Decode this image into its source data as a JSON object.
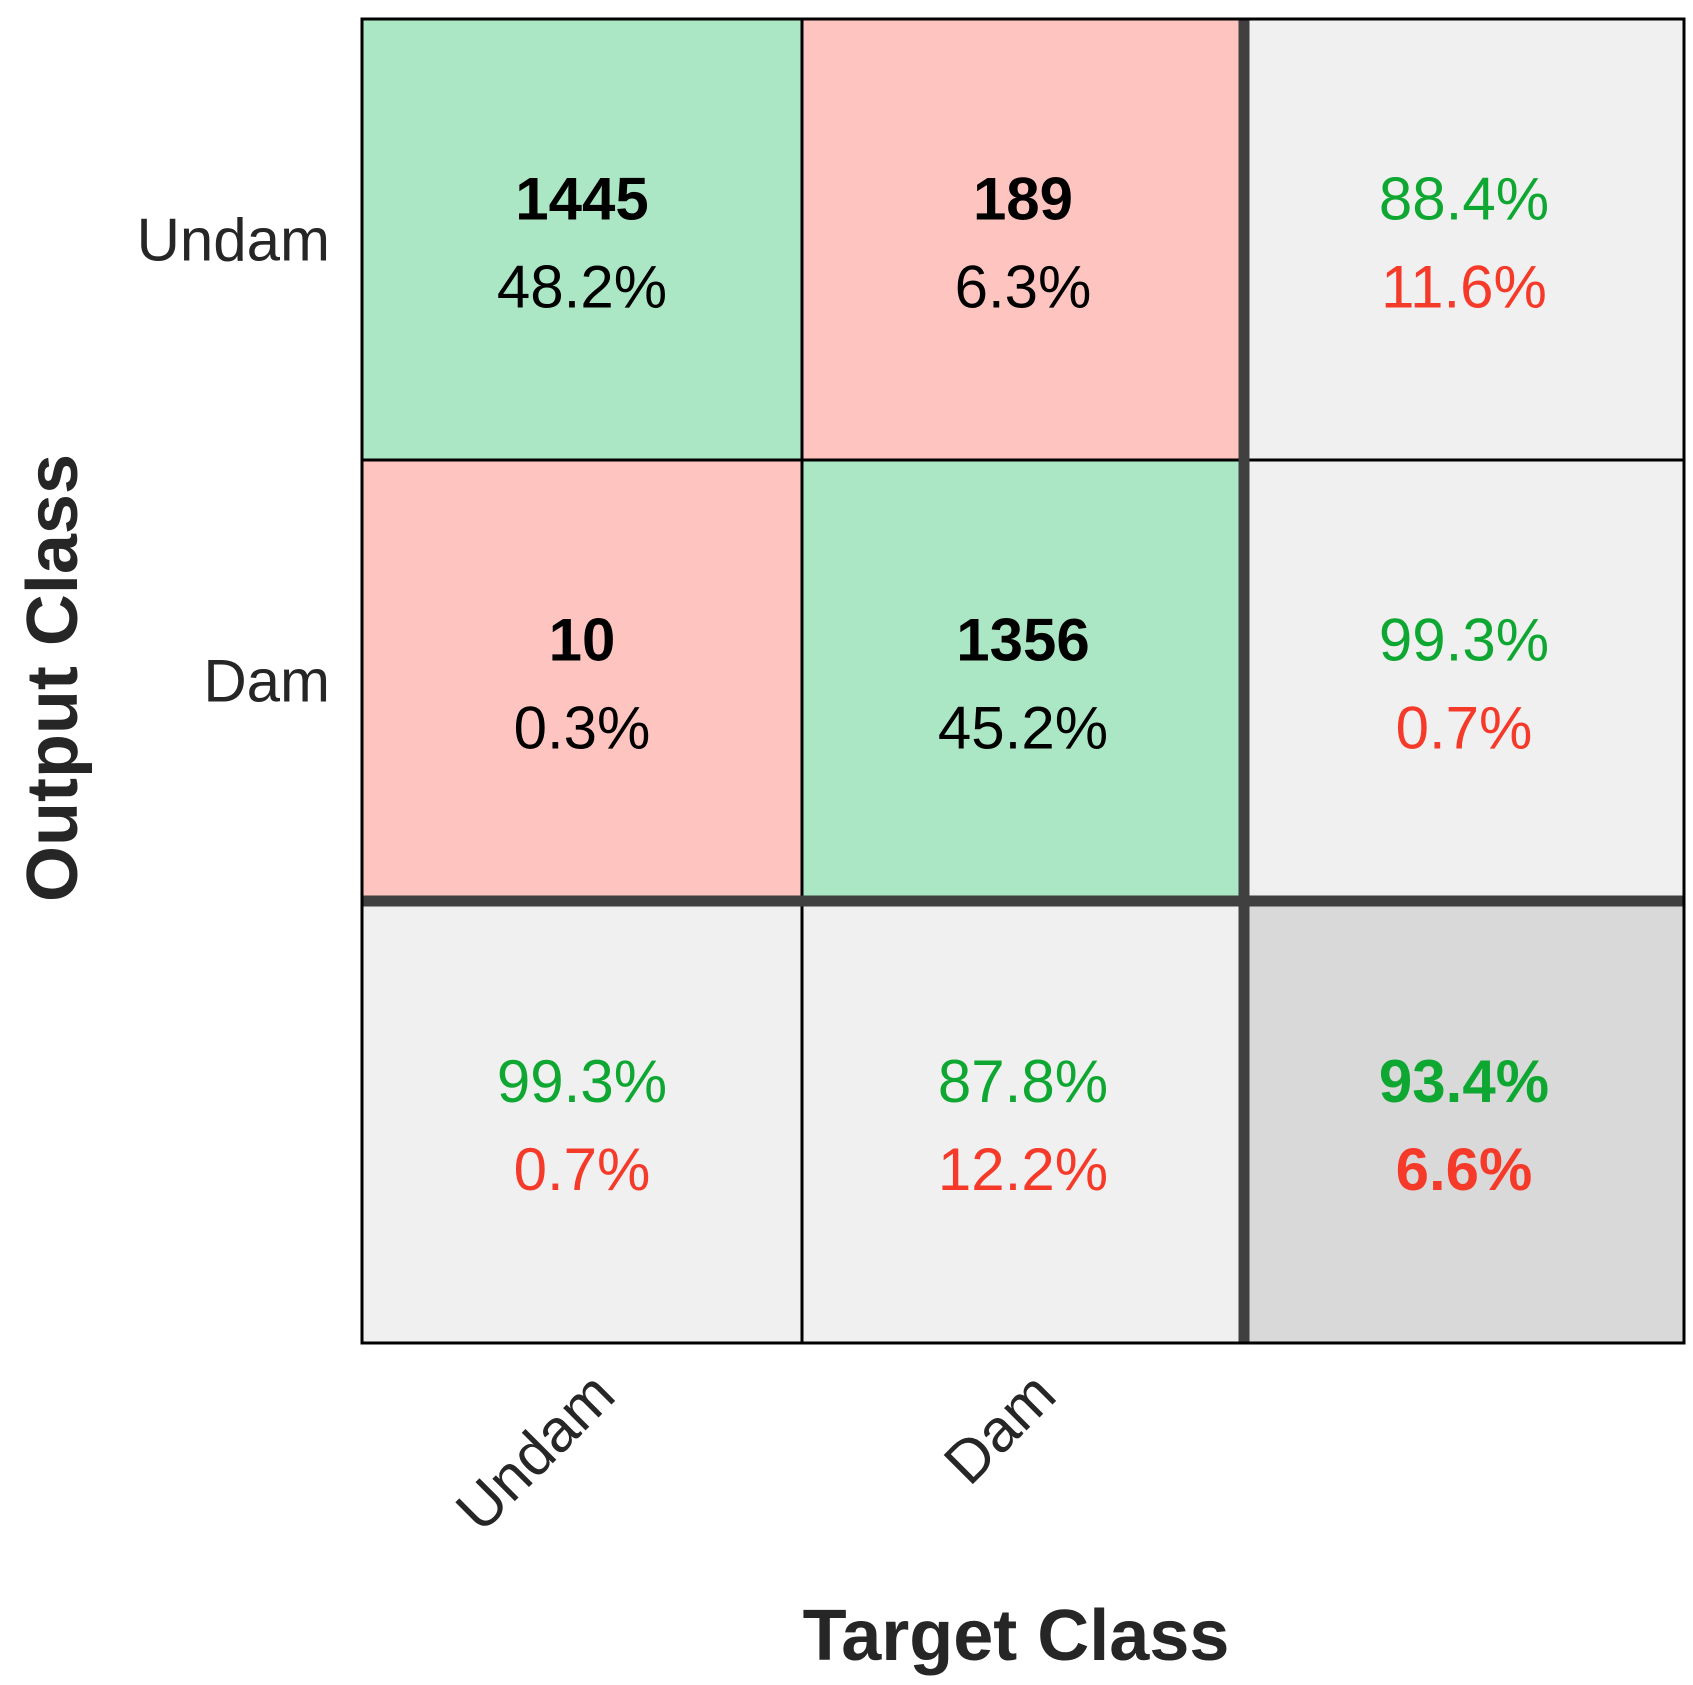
{
  "chart_data": {
    "type": "heatmap",
    "subtype": "confusion-matrix",
    "xlabel": "Target Class",
    "ylabel": "Output Class",
    "classes": [
      "Undam",
      "Dam"
    ],
    "matrix": [
      [
        {
          "count": "1445",
          "percent": "48.2%"
        },
        {
          "count": "189",
          "percent": "6.3%"
        }
      ],
      [
        {
          "count": "10",
          "percent": "0.3%"
        },
        {
          "count": "1356",
          "percent": "45.2%"
        }
      ]
    ],
    "row_summary": [
      {
        "correct": "88.4%",
        "error": "11.6%"
      },
      {
        "correct": "99.3%",
        "error": "0.7%"
      }
    ],
    "column_summary": [
      {
        "correct": "99.3%",
        "error": "0.7%"
      },
      {
        "correct": "87.8%",
        "error": "12.2%"
      }
    ],
    "overall": {
      "correct": "93.4%",
      "error": "6.6%"
    },
    "colors": {
      "correct_cell": "#abe7c5",
      "error_cell": "#fec4c0",
      "summary_cell": "#f0f0f0",
      "overall_cell": "#d9d9d9",
      "correct_text": "#0ea731",
      "error_text": "#f53a2a",
      "count_text": "#000000"
    }
  }
}
